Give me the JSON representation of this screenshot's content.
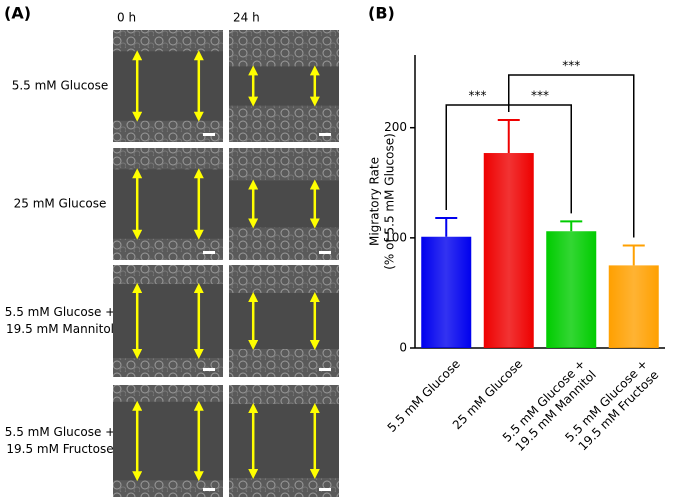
{
  "panel_a": {
    "label": "(A)",
    "columns": [
      "0 h",
      "24 h"
    ],
    "rows": [
      [
        "5.5 mM Glucose"
      ],
      [
        "25 mM Glucose"
      ],
      [
        "5.5 mM Glucose +",
        "19.5 mM Mannitol"
      ],
      [
        "5.5 mM Glucose +",
        "19.5 mM Fructose"
      ]
    ]
  },
  "chart_data": {
    "type": "bar",
    "label": "(B)",
    "ylabel": [
      "Migratory Rate",
      "(% of 5.5 mM Glucose)"
    ],
    "categories": [
      [
        "5.5 mM Glucose"
      ],
      [
        "25 mM Glucose"
      ],
      [
        "5.5 mM Glucose +",
        "19.5 mM Mannitol"
      ],
      [
        "5.5 mM Glucose +",
        "19.5 mM Fructose"
      ]
    ],
    "values": [
      101,
      177,
      106,
      75
    ],
    "errors": [
      17,
      30,
      9,
      18
    ],
    "colors": [
      "#0000ee",
      "#ee0000",
      "#00cc00",
      "#ffa000"
    ],
    "ylim": [
      0,
      266
    ],
    "yticks": [
      0,
      100,
      200
    ],
    "annotations": [
      "***",
      "***",
      "***"
    ]
  }
}
